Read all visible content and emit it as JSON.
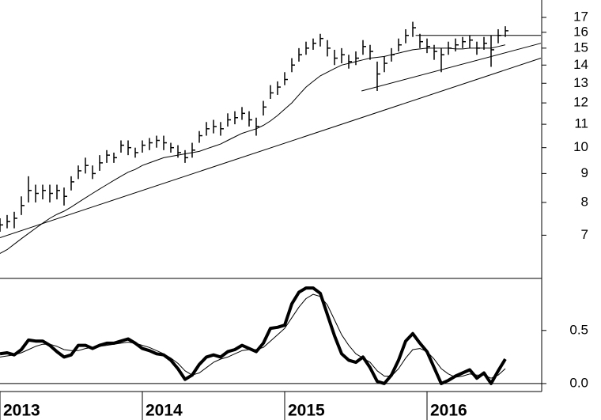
{
  "chart_data": [
    {
      "type": "hlc",
      "log": true,
      "x": [
        2013,
        2013.05,
        2013.1,
        2013.15,
        2013.2,
        2013.25,
        2013.3,
        2013.35,
        2013.4,
        2013.45,
        2013.5,
        2013.55,
        2013.6,
        2013.65,
        2013.7,
        2013.75,
        2013.8,
        2013.85,
        2013.9,
        2013.95,
        2014,
        2014.05,
        2014.1,
        2014.15,
        2014.2,
        2014.25,
        2014.3,
        2014.35,
        2014.4,
        2014.45,
        2014.5,
        2014.55,
        2014.6,
        2014.65,
        2014.7,
        2014.75,
        2014.8,
        2014.85,
        2014.9,
        2014.95,
        2015,
        2015.05,
        2015.1,
        2015.15,
        2015.2,
        2015.25,
        2015.3,
        2015.35,
        2015.4,
        2015.45,
        2015.5,
        2015.55,
        2015.6,
        2015.65,
        2015.7,
        2015.75,
        2015.8,
        2015.85,
        2015.9,
        2015.95,
        2016,
        2016.05,
        2016.1,
        2016.15,
        2016.2,
        2016.25,
        2016.3,
        2016.35,
        2016.4,
        2016.45,
        2016.5,
        2016.55
      ],
      "high": [
        7.5,
        7.6,
        7.7,
        8.2,
        8.9,
        8.6,
        8.6,
        8.6,
        8.6,
        8.5,
        8.9,
        9.3,
        9.6,
        9.3,
        9.7,
        9.9,
        9.8,
        10.3,
        10.3,
        10.0,
        10.3,
        10.4,
        10.5,
        10.5,
        10.2,
        10.1,
        9.9,
        10.2,
        10.7,
        11.1,
        11.2,
        11.1,
        11.5,
        11.6,
        11.8,
        11.6,
        11.3,
        12.1,
        12.9,
        13.1,
        13.6,
        14.4,
        15.0,
        15.4,
        15.6,
        15.9,
        15.5,
        14.9,
        15.0,
        14.6,
        14.8,
        15.5,
        15.2,
        14.2,
        14.5,
        15.0,
        15.6,
        16.2,
        16.7,
        15.9,
        15.6,
        15.2,
        15.0,
        15.4,
        15.6,
        15.7,
        15.8,
        15.4,
        15.7,
        15.8,
        16.2,
        16.4
      ],
      "low": [
        7.1,
        7.2,
        7.2,
        7.6,
        8.0,
        8.0,
        8.1,
        8.0,
        8.1,
        7.9,
        8.4,
        8.8,
        9.0,
        8.8,
        9.1,
        9.4,
        9.4,
        9.8,
        9.7,
        9.6,
        9.8,
        9.9,
        10.0,
        9.9,
        9.8,
        9.6,
        9.4,
        9.6,
        10.2,
        10.5,
        10.6,
        10.5,
        10.9,
        11.0,
        11.2,
        10.9,
        10.5,
        11.4,
        12.2,
        12.4,
        12.9,
        13.6,
        14.2,
        14.6,
        14.9,
        15.1,
        14.5,
        14.0,
        14.1,
        13.8,
        14.0,
        14.6,
        14.3,
        12.6,
        13.6,
        14.2,
        14.8,
        15.3,
        15.7,
        15.0,
        14.7,
        14.3,
        13.6,
        14.6,
        14.8,
        15.0,
        15.0,
        14.6,
        14.9,
        13.9,
        15.3,
        15.7
      ],
      "close": [
        7.3,
        7.4,
        7.5,
        7.9,
        8.4,
        8.3,
        8.4,
        8.3,
        8.4,
        8.2,
        8.7,
        9.1,
        9.3,
        9.0,
        9.4,
        9.7,
        9.6,
        10.1,
        10.0,
        9.8,
        10.1,
        10.2,
        10.3,
        10.2,
        10.0,
        9.8,
        9.6,
        9.9,
        10.5,
        10.8,
        10.9,
        10.8,
        11.2,
        11.3,
        11.5,
        11.2,
        10.9,
        11.8,
        12.5,
        12.8,
        13.2,
        14.0,
        14.6,
        15.0,
        15.3,
        15.6,
        15.0,
        14.4,
        14.6,
        14.2,
        14.4,
        15.1,
        14.8,
        13.5,
        14.1,
        14.6,
        15.2,
        15.8,
        16.3,
        15.4,
        15.1,
        14.8,
        14.6,
        15.0,
        15.2,
        15.4,
        15.5,
        15.0,
        15.3,
        14.9,
        15.8,
        16.1
      ],
      "ma": [
        6.5,
        6.6,
        6.75,
        6.9,
        7.05,
        7.2,
        7.35,
        7.5,
        7.62,
        7.72,
        7.85,
        8.0,
        8.15,
        8.3,
        8.45,
        8.6,
        8.75,
        8.9,
        9.05,
        9.15,
        9.3,
        9.4,
        9.5,
        9.6,
        9.65,
        9.7,
        9.75,
        9.8,
        9.85,
        9.95,
        10.05,
        10.15,
        10.3,
        10.45,
        10.6,
        10.7,
        10.8,
        10.95,
        11.15,
        11.4,
        11.7,
        12.0,
        12.4,
        12.8,
        13.1,
        13.4,
        13.6,
        13.8,
        14.0,
        14.1,
        14.2,
        14.3,
        14.4,
        14.45,
        14.5,
        14.6,
        14.7,
        14.8,
        14.9,
        14.95,
        15.0,
        15.0,
        15.0,
        15.0,
        14.95,
        14.95,
        15.0,
        15.0,
        15.0,
        15.0,
        15.1,
        15.2
      ],
      "lines": [
        {
          "x": [
            2013,
            2016.8
          ],
          "y": [
            6.93,
            14.4
          ]
        },
        {
          "x": [
            2015.54,
            2016.8
          ],
          "y": [
            12.6,
            15.3
          ]
        },
        {
          "x": [
            2015.92,
            2016.8
          ],
          "y": [
            15.8,
            15.8
          ]
        }
      ],
      "xlim": [
        2013,
        2016.8
      ],
      "ylim": [
        5.87,
        18.25
      ],
      "yticks": [
        7,
        8,
        9,
        10,
        11,
        12,
        13,
        14,
        15,
        16,
        17
      ],
      "color": "#000000"
    },
    {
      "type": "line",
      "series": [
        {
          "values": [
            0.28,
            0.29,
            0.27,
            0.32,
            0.41,
            0.4,
            0.4,
            0.36,
            0.3,
            0.25,
            0.27,
            0.36,
            0.36,
            0.33,
            0.36,
            0.38,
            0.38,
            0.4,
            0.42,
            0.38,
            0.33,
            0.31,
            0.28,
            0.27,
            0.22,
            0.14,
            0.04,
            0.08,
            0.18,
            0.25,
            0.27,
            0.25,
            0.3,
            0.32,
            0.36,
            0.33,
            0.3,
            0.38,
            0.52,
            0.53,
            0.55,
            0.75,
            0.86,
            0.9,
            0.9,
            0.85,
            0.65,
            0.45,
            0.28,
            0.22,
            0.2,
            0.25,
            0.15,
            0.02,
            0.0,
            0.08,
            0.22,
            0.4,
            0.47,
            0.38,
            0.3,
            0.15,
            0.0,
            0.03,
            0.07,
            0.1,
            0.13,
            0.05,
            0.1,
            0.0,
            0.12,
            0.23
          ],
          "color": "#000000",
          "width": 4
        },
        {
          "values": [
            0.25,
            0.26,
            0.27,
            0.29,
            0.32,
            0.35,
            0.37,
            0.37,
            0.35,
            0.32,
            0.31,
            0.31,
            0.33,
            0.34,
            0.35,
            0.36,
            0.37,
            0.38,
            0.39,
            0.38,
            0.36,
            0.34,
            0.31,
            0.28,
            0.24,
            0.19,
            0.12,
            0.08,
            0.1,
            0.15,
            0.2,
            0.23,
            0.25,
            0.28,
            0.31,
            0.32,
            0.32,
            0.34,
            0.4,
            0.46,
            0.52,
            0.62,
            0.72,
            0.8,
            0.84,
            0.82,
            0.74,
            0.6,
            0.46,
            0.36,
            0.28,
            0.24,
            0.2,
            0.12,
            0.07,
            0.07,
            0.14,
            0.24,
            0.32,
            0.33,
            0.3,
            0.23,
            0.14,
            0.09,
            0.06,
            0.07,
            0.09,
            0.08,
            0.08,
            0.05,
            0.08,
            0.14
          ],
          "color": "#000000",
          "width": 1
        }
      ],
      "ylim": [
        -0.075,
        0.99
      ],
      "yticks": [
        {
          "value": 0,
          "label": "0.0"
        },
        0.5
      ],
      "xticks": [
        2013,
        2014,
        2015,
        2016
      ]
    }
  ]
}
